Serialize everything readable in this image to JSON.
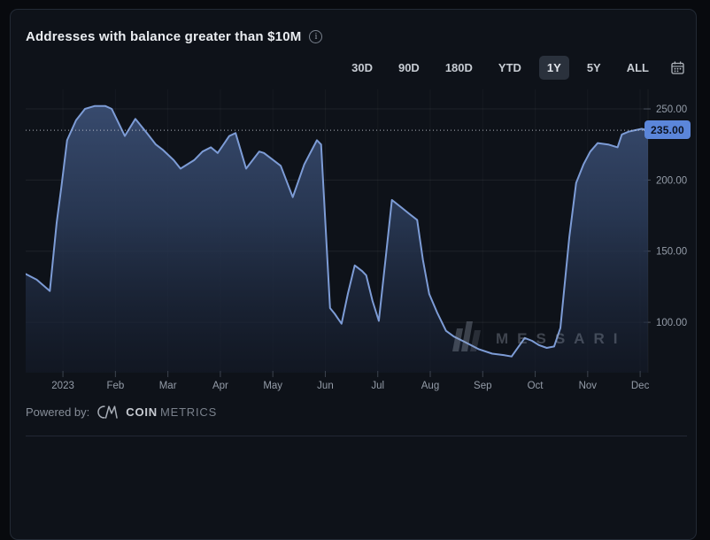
{
  "header": {
    "title": "Addresses with balance greater than $10M",
    "info_icon": "i"
  },
  "toolbar": {
    "ranges": [
      {
        "label": "30D",
        "selected": false
      },
      {
        "label": "90D",
        "selected": false
      },
      {
        "label": "180D",
        "selected": false
      },
      {
        "label": "YTD",
        "selected": false
      },
      {
        "label": "1Y",
        "selected": true
      },
      {
        "label": "5Y",
        "selected": false
      },
      {
        "label": "ALL",
        "selected": false
      }
    ]
  },
  "chart_data": {
    "type": "area",
    "title": "Addresses with balance greater than $10M",
    "legend": "none",
    "grid": "horizontal-major, faint-vertical-monthly",
    "x": {
      "unit": "months (0 = Jan 2023, line starts mid-Dec 2022)",
      "xlim": [
        -0.71,
        11.15
      ],
      "tick_positions": [
        0,
        1,
        2,
        3,
        4,
        5,
        6,
        7,
        8,
        9,
        10,
        11
      ],
      "tick_labels": [
        "2023",
        "Feb",
        "Mar",
        "Apr",
        "May",
        "Jun",
        "Jul",
        "Aug",
        "Sep",
        "Oct",
        "Nov",
        "Dec"
      ]
    },
    "y": {
      "side": "right",
      "ylim": [
        64.6,
        263.7
      ],
      "tick_values": [
        250,
        200,
        150,
        100
      ],
      "tick_labels": [
        "250.00",
        "200.00",
        "150.00",
        "100.00"
      ]
    },
    "current_value": 235,
    "current_value_label": "235.00",
    "series": [
      {
        "name": "Addresses with balance greater than $10M",
        "points": [
          [
            -0.71,
            134
          ],
          [
            -0.5,
            130
          ],
          [
            -0.25,
            122
          ],
          [
            -0.12,
            170
          ],
          [
            -0.03,
            195
          ],
          [
            0.08,
            228
          ],
          [
            0.25,
            242
          ],
          [
            0.42,
            250
          ],
          [
            0.6,
            252
          ],
          [
            0.81,
            252
          ],
          [
            0.93,
            250
          ],
          [
            1.18,
            231
          ],
          [
            1.38,
            243
          ],
          [
            1.6,
            233
          ],
          [
            1.77,
            225
          ],
          [
            1.91,
            221
          ],
          [
            2.11,
            214
          ],
          [
            2.24,
            208
          ],
          [
            2.5,
            214
          ],
          [
            2.66,
            220
          ],
          [
            2.82,
            223
          ],
          [
            2.95,
            219
          ],
          [
            3.17,
            231
          ],
          [
            3.29,
            233
          ],
          [
            3.49,
            208
          ],
          [
            3.74,
            220
          ],
          [
            3.83,
            219
          ],
          [
            4.01,
            214
          ],
          [
            4.15,
            210
          ],
          [
            4.38,
            188
          ],
          [
            4.6,
            211
          ],
          [
            4.84,
            228
          ],
          [
            4.92,
            225
          ],
          [
            5.09,
            110
          ],
          [
            5.18,
            106
          ],
          [
            5.31,
            99
          ],
          [
            5.43,
            120
          ],
          [
            5.56,
            140
          ],
          [
            5.7,
            136
          ],
          [
            5.78,
            133
          ],
          [
            5.9,
            115
          ],
          [
            6.02,
            101
          ],
          [
            6.15,
            145
          ],
          [
            6.27,
            186
          ],
          [
            6.44,
            181
          ],
          [
            6.61,
            176
          ],
          [
            6.75,
            172
          ],
          [
            6.86,
            144
          ],
          [
            6.98,
            120
          ],
          [
            7.13,
            107
          ],
          [
            7.3,
            94
          ],
          [
            7.45,
            90
          ],
          [
            7.67,
            86
          ],
          [
            7.93,
            81
          ],
          [
            8.18,
            78
          ],
          [
            8.4,
            77
          ],
          [
            8.55,
            76
          ],
          [
            8.8,
            89
          ],
          [
            8.94,
            87
          ],
          [
            9.07,
            84
          ],
          [
            9.22,
            82
          ],
          [
            9.36,
            83
          ],
          [
            9.48,
            96
          ],
          [
            9.65,
            160
          ],
          [
            9.78,
            198
          ],
          [
            9.92,
            211
          ],
          [
            10.05,
            220
          ],
          [
            10.19,
            226
          ],
          [
            10.39,
            225
          ],
          [
            10.57,
            223
          ],
          [
            10.65,
            232
          ],
          [
            10.78,
            234
          ],
          [
            10.9,
            235
          ],
          [
            11.03,
            236
          ],
          [
            11.15,
            235
          ]
        ]
      }
    ],
    "colors": {
      "line": "#7d9cd6",
      "fill_top": "#3c5076",
      "fill_mid": "#2a3a57",
      "fill_bottom": "#141b2a",
      "grid": "rgba(255,255,255,0.07)",
      "vgrid": "rgba(255,255,255,0.035)",
      "tick": "#3c434e",
      "axis_label": "#949ca8",
      "dotted": "#c9ced8",
      "badge_bg": "#5b86da",
      "badge_text": "#0c1322"
    }
  },
  "watermark": {
    "text": "MESSARI"
  },
  "footer": {
    "powered_by": "Powered by:",
    "brand_bold": "COIN",
    "brand_light": "METRICS"
  }
}
